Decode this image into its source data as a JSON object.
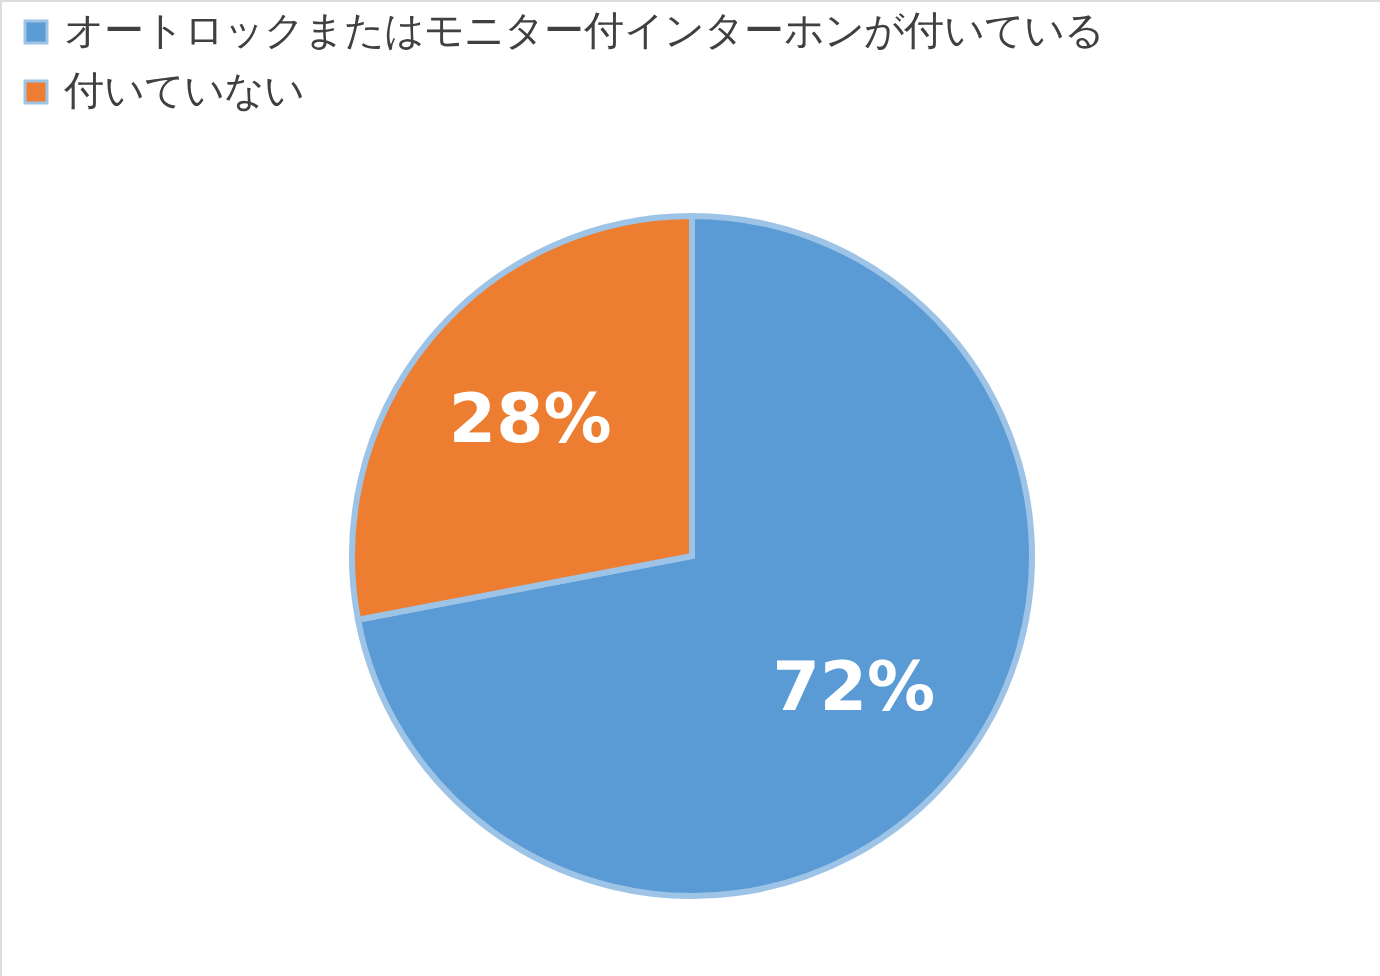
{
  "chart_data": {
    "type": "pie",
    "categories": [
      "オートロックまたはモニター付インターホンが付いている",
      "付いていない"
    ],
    "values": [
      72,
      28
    ],
    "colors": [
      "#5b9bd5",
      "#ed7d31"
    ],
    "value_labels": [
      "72%",
      "28%"
    ],
    "legend": "top left"
  }
}
